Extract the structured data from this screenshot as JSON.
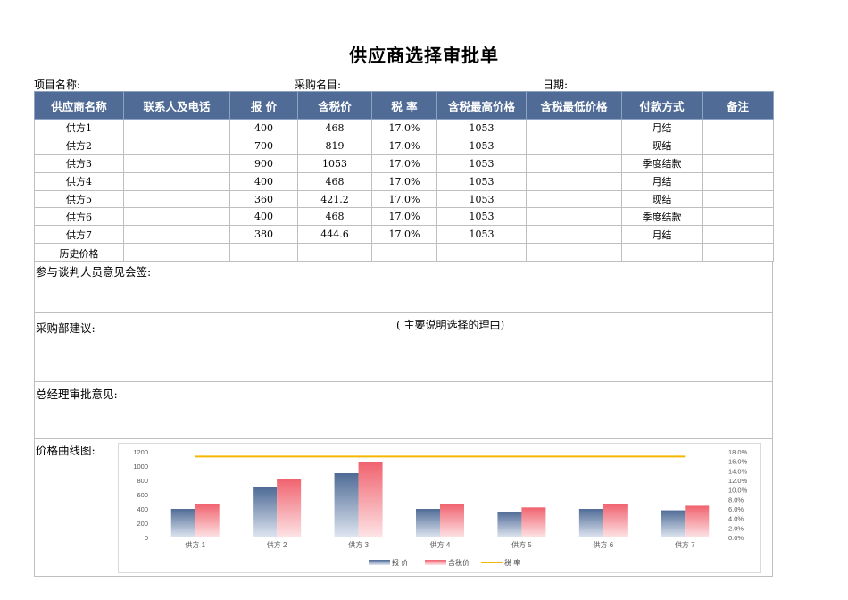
{
  "title": "供应商选择审批单",
  "meta": {
    "project_label": "项目名称:",
    "purchase_label": "采购名目:",
    "date_label": "日期:"
  },
  "columns": [
    "供应商名称",
    "联系人及电话",
    "报 价",
    "含税价",
    "税 率",
    "含税最高价格",
    "含税最低价格",
    "付款方式",
    "备注"
  ],
  "rows": [
    [
      "供方1",
      "",
      "400",
      "468",
      "17.0%",
      "1053",
      "",
      "月结",
      ""
    ],
    [
      "供方2",
      "",
      "700",
      "819",
      "17.0%",
      "1053",
      "",
      "现结",
      ""
    ],
    [
      "供方3",
      "",
      "900",
      "1053",
      "17.0%",
      "1053",
      "",
      "季度结款",
      ""
    ],
    [
      "供方4",
      "",
      "400",
      "468",
      "17.0%",
      "1053",
      "",
      "月结",
      ""
    ],
    [
      "供方5",
      "",
      "360",
      "421.2",
      "17.0%",
      "1053",
      "",
      "现结",
      ""
    ],
    [
      "供方6",
      "",
      "400",
      "468",
      "17.0%",
      "1053",
      "",
      "季度结款",
      ""
    ],
    [
      "供方7",
      "",
      "380",
      "444.6",
      "17.0%",
      "1053",
      "",
      "月结",
      ""
    ],
    [
      "历史价格",
      "",
      "",
      "",
      "",
      "",
      "",
      "",
      ""
    ]
  ],
  "sections": {
    "participants_label": "参与谈判人员意见会签:",
    "purchase_dept_label": "采购部建议:",
    "purchase_dept_note": "( 主要说明选择的理由)",
    "gm_label": "总经理审批意见:",
    "chart_label": "价格曲线图:"
  },
  "chart_data": {
    "type": "bar",
    "categories": [
      "供方 1",
      "供方 2",
      "供方 3",
      "供方 4",
      "供方 5",
      "供方 6",
      "供方 7"
    ],
    "series": [
      {
        "name": "报 价",
        "type": "bar",
        "values": [
          400,
          700,
          900,
          400,
          360,
          400,
          380
        ],
        "color": "#4f6b96"
      },
      {
        "name": "含税价",
        "type": "bar",
        "values": [
          468,
          819,
          1053,
          468,
          421.2,
          468,
          444.6
        ],
        "color": "#f0636f"
      },
      {
        "name": "税 率",
        "type": "line",
        "axis": "right",
        "values": [
          0.17,
          0.17,
          0.17,
          0.17,
          0.17,
          0.17,
          0.17
        ],
        "color": "#f5b800"
      }
    ],
    "ylim": [
      0,
      1200
    ],
    "yticks": [
      "0",
      "200",
      "400",
      "600",
      "800",
      "1000",
      "1200"
    ],
    "y2lim": [
      0,
      0.18
    ],
    "y2ticks": [
      "0.0%",
      "2.0%",
      "4.0%",
      "6.0%",
      "8.0%",
      "10.0%",
      "12.0%",
      "14.0%",
      "16.0%",
      "18.0%"
    ],
    "legend": "bottom",
    "grid": false
  }
}
